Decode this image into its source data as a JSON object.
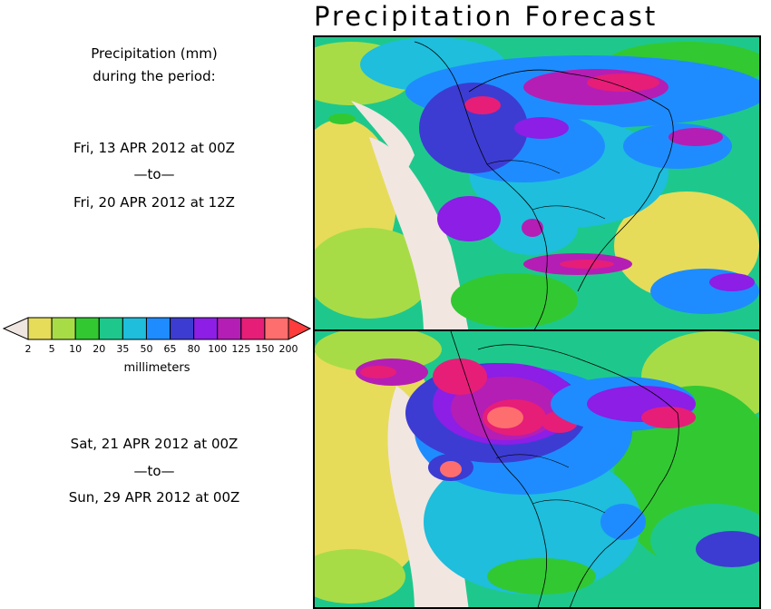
{
  "header": {
    "title": "Precipitation Forecast"
  },
  "period_label": {
    "line1": "Precipitation (mm)",
    "line2": "during the period:"
  },
  "period1": {
    "start": "Fri, 13 APR 2012 at 00Z",
    "sep": "—to—",
    "end": "Fri, 20 APR 2012 at 12Z"
  },
  "period2": {
    "start": "Sat, 21 APR 2012 at 00Z",
    "sep": "—to—",
    "end": "Sun, 29 APR 2012 at 00Z"
  },
  "legend": {
    "units": "millimeters",
    "ticks": [
      "2",
      "5",
      "10",
      "20",
      "35",
      "50",
      "65",
      "80",
      "100",
      "125",
      "150",
      "200"
    ],
    "colors": [
      "#e6dc5a",
      "#a8dc46",
      "#32c832",
      "#1ec88c",
      "#1ebedc",
      "#1e8cff",
      "#3c3cd2",
      "#8c1ee6",
      "#b41eb4",
      "#e61e78",
      "#ff6e6e"
    ],
    "under_color": "#f0e6e1",
    "over_color": "#ff3c3c"
  },
  "map_colors": {
    "land_dry": "#f2e6e1",
    "light": "#e6dc5a",
    "low": "#a8dc46",
    "green": "#32c832",
    "teal": "#1ec88c",
    "cyan": "#1ebedc",
    "blue": "#1e8cff",
    "dblue": "#3c3cd2",
    "purple": "#8c1ee6",
    "magenta": "#b41eb4",
    "pink": "#e61e78",
    "red": "#ff6e6e"
  }
}
